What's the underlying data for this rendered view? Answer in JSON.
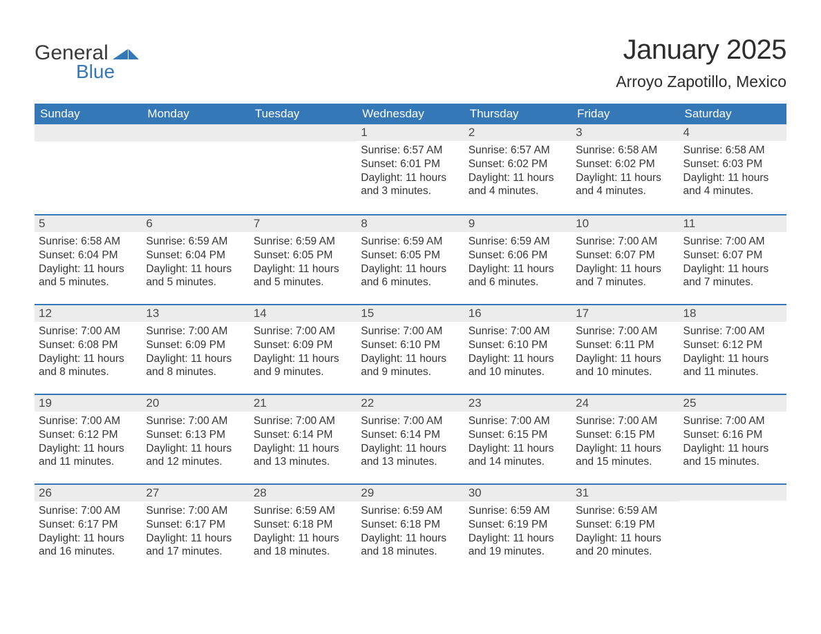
{
  "colors": {
    "header_bg": "#3578b8",
    "header_text": "#ffffff",
    "daynum_bg": "#ececec",
    "day_divider": "#3578b8",
    "body_text": "#353535",
    "logo_dark": "#3a3a3a",
    "logo_blue": "#3578b8",
    "page_bg": "#ffffff"
  },
  "typography": {
    "title_fontsize": 40,
    "location_fontsize": 23,
    "header_fontsize": 17,
    "daynum_fontsize": 17,
    "cell_fontsize": 15.5
  },
  "logo": {
    "word1": "General",
    "word2": "Blue"
  },
  "title": "January 2025",
  "location": "Arroyo Zapotillo, Mexico",
  "day_headers": [
    "Sunday",
    "Monday",
    "Tuesday",
    "Wednesday",
    "Thursday",
    "Friday",
    "Saturday"
  ],
  "labels": {
    "sunrise": "Sunrise:",
    "sunset": "Sunset:",
    "daylight": "Daylight:"
  },
  "weeks": [
    [
      null,
      null,
      null,
      {
        "n": "1",
        "sr": "6:57 AM",
        "ss": "6:01 PM",
        "dl": "11 hours and 3 minutes."
      },
      {
        "n": "2",
        "sr": "6:57 AM",
        "ss": "6:02 PM",
        "dl": "11 hours and 4 minutes."
      },
      {
        "n": "3",
        "sr": "6:58 AM",
        "ss": "6:02 PM",
        "dl": "11 hours and 4 minutes."
      },
      {
        "n": "4",
        "sr": "6:58 AM",
        "ss": "6:03 PM",
        "dl": "11 hours and 4 minutes."
      }
    ],
    [
      {
        "n": "5",
        "sr": "6:58 AM",
        "ss": "6:04 PM",
        "dl": "11 hours and 5 minutes."
      },
      {
        "n": "6",
        "sr": "6:59 AM",
        "ss": "6:04 PM",
        "dl": "11 hours and 5 minutes."
      },
      {
        "n": "7",
        "sr": "6:59 AM",
        "ss": "6:05 PM",
        "dl": "11 hours and 5 minutes."
      },
      {
        "n": "8",
        "sr": "6:59 AM",
        "ss": "6:05 PM",
        "dl": "11 hours and 6 minutes."
      },
      {
        "n": "9",
        "sr": "6:59 AM",
        "ss": "6:06 PM",
        "dl": "11 hours and 6 minutes."
      },
      {
        "n": "10",
        "sr": "7:00 AM",
        "ss": "6:07 PM",
        "dl": "11 hours and 7 minutes."
      },
      {
        "n": "11",
        "sr": "7:00 AM",
        "ss": "6:07 PM",
        "dl": "11 hours and 7 minutes."
      }
    ],
    [
      {
        "n": "12",
        "sr": "7:00 AM",
        "ss": "6:08 PM",
        "dl": "11 hours and 8 minutes."
      },
      {
        "n": "13",
        "sr": "7:00 AM",
        "ss": "6:09 PM",
        "dl": "11 hours and 8 minutes."
      },
      {
        "n": "14",
        "sr": "7:00 AM",
        "ss": "6:09 PM",
        "dl": "11 hours and 9 minutes."
      },
      {
        "n": "15",
        "sr": "7:00 AM",
        "ss": "6:10 PM",
        "dl": "11 hours and 9 minutes."
      },
      {
        "n": "16",
        "sr": "7:00 AM",
        "ss": "6:10 PM",
        "dl": "11 hours and 10 minutes."
      },
      {
        "n": "17",
        "sr": "7:00 AM",
        "ss": "6:11 PM",
        "dl": "11 hours and 10 minutes."
      },
      {
        "n": "18",
        "sr": "7:00 AM",
        "ss": "6:12 PM",
        "dl": "11 hours and 11 minutes."
      }
    ],
    [
      {
        "n": "19",
        "sr": "7:00 AM",
        "ss": "6:12 PM",
        "dl": "11 hours and 11 minutes."
      },
      {
        "n": "20",
        "sr": "7:00 AM",
        "ss": "6:13 PM",
        "dl": "11 hours and 12 minutes."
      },
      {
        "n": "21",
        "sr": "7:00 AM",
        "ss": "6:14 PM",
        "dl": "11 hours and 13 minutes."
      },
      {
        "n": "22",
        "sr": "7:00 AM",
        "ss": "6:14 PM",
        "dl": "11 hours and 13 minutes."
      },
      {
        "n": "23",
        "sr": "7:00 AM",
        "ss": "6:15 PM",
        "dl": "11 hours and 14 minutes."
      },
      {
        "n": "24",
        "sr": "7:00 AM",
        "ss": "6:15 PM",
        "dl": "11 hours and 15 minutes."
      },
      {
        "n": "25",
        "sr": "7:00 AM",
        "ss": "6:16 PM",
        "dl": "11 hours and 15 minutes."
      }
    ],
    [
      {
        "n": "26",
        "sr": "7:00 AM",
        "ss": "6:17 PM",
        "dl": "11 hours and 16 minutes."
      },
      {
        "n": "27",
        "sr": "7:00 AM",
        "ss": "6:17 PM",
        "dl": "11 hours and 17 minutes."
      },
      {
        "n": "28",
        "sr": "6:59 AM",
        "ss": "6:18 PM",
        "dl": "11 hours and 18 minutes."
      },
      {
        "n": "29",
        "sr": "6:59 AM",
        "ss": "6:18 PM",
        "dl": "11 hours and 18 minutes."
      },
      {
        "n": "30",
        "sr": "6:59 AM",
        "ss": "6:19 PM",
        "dl": "11 hours and 19 minutes."
      },
      {
        "n": "31",
        "sr": "6:59 AM",
        "ss": "6:19 PM",
        "dl": "11 hours and 20 minutes."
      },
      null
    ]
  ]
}
